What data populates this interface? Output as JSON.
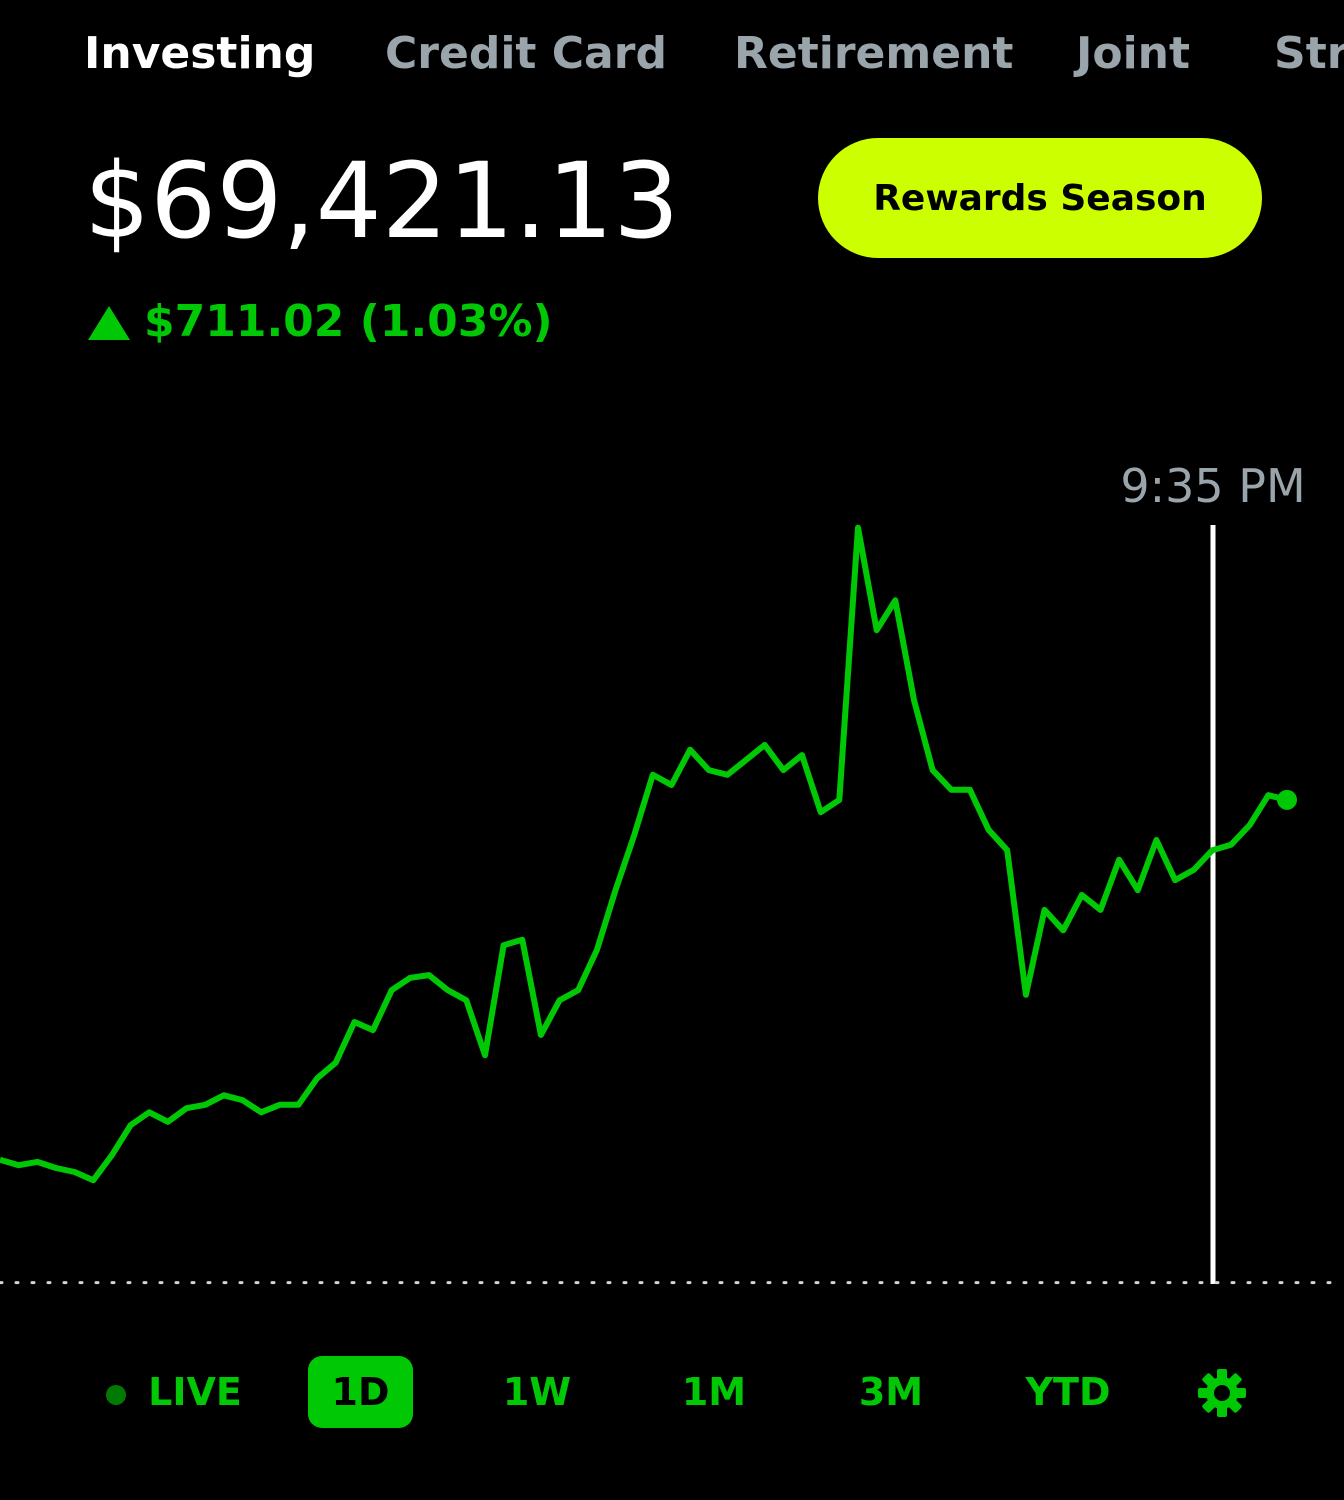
{
  "tabs": [
    "Investing",
    "Credit Card",
    "Retirement",
    "Joint",
    "Str"
  ],
  "balance": "$69,421.13",
  "change": "$711.02 (1.03%)",
  "rewards_button": "Rewards Season",
  "cursor_label": "9:35 PM",
  "ranges": [
    "LIVE",
    "1D",
    "1W",
    "1M",
    "3M",
    "YTD"
  ],
  "chart_data": {
    "type": "line",
    "color": "#00c805",
    "values": [
      68891,
      68883,
      68888,
      68879,
      68873,
      68861,
      68898,
      68942,
      68961,
      68947,
      68967,
      68972,
      68986,
      68979,
      68961,
      68972,
      68972,
      69011,
      69034,
      69094,
      69082,
      69141,
      69159,
      69163,
      69141,
      69126,
      69045,
      69207,
      69215,
      69075,
      69126,
      69141,
      69200,
      69288,
      69369,
      69458,
      69443,
      69495,
      69465,
      69458,
      69480,
      69502,
      69465,
      69487,
      69403,
      69421,
      69822,
      69671,
      69715,
      69568,
      69465,
      69436,
      69436,
      69377,
      69347,
      69134,
      69259,
      69229,
      69281,
      69259,
      69333,
      69288,
      69362,
      69303,
      69318,
      69347,
      69355,
      69384,
      69428,
      69421.13
    ],
    "baseline": 68710.11,
    "ylim": [
      68390,
      70010
    ]
  }
}
